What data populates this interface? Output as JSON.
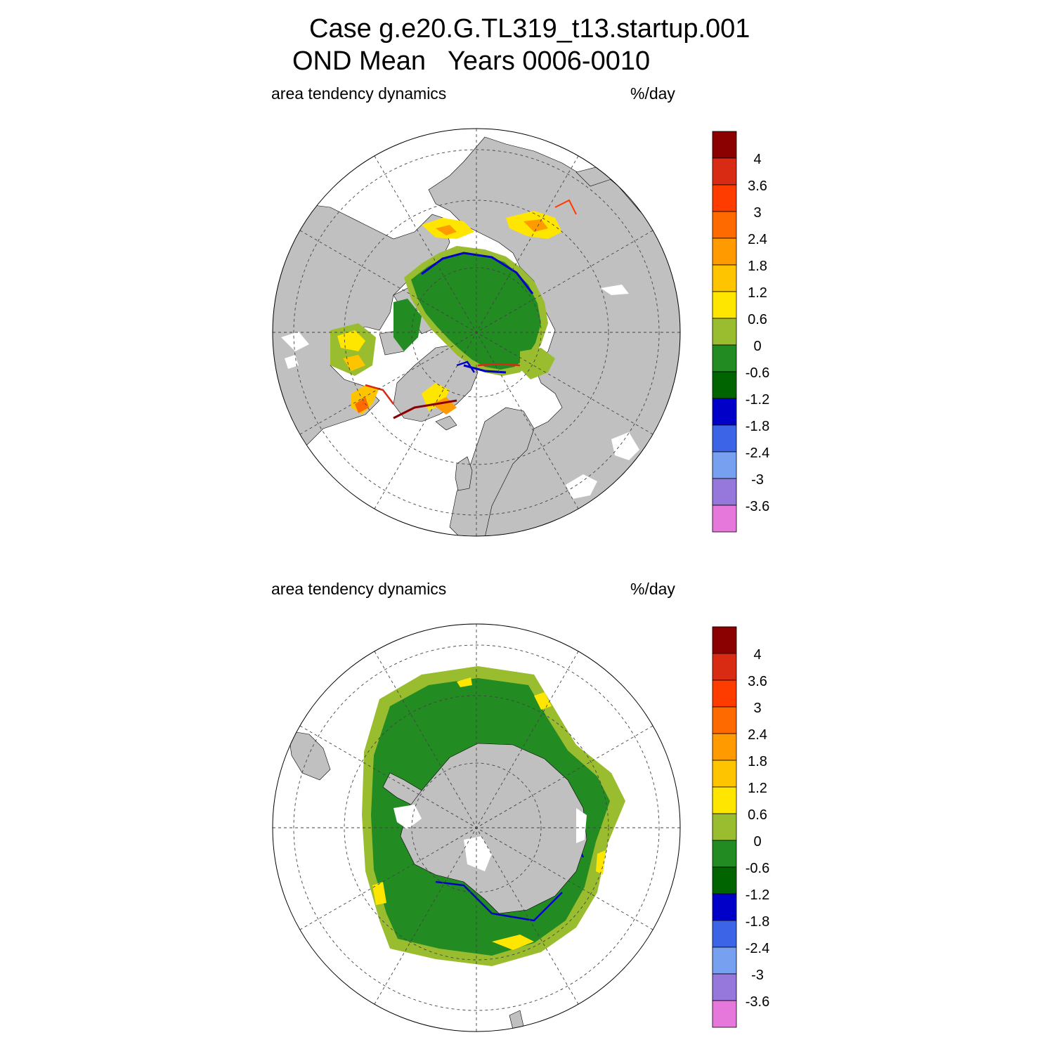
{
  "title": {
    "line1": "Case g.e20.G.TL319_t13.startup.001",
    "line2": "OND Mean   Years 0006-0010"
  },
  "panels": [
    {
      "id": "north",
      "left_label": "area tendency dynamics",
      "right_label": "%/day",
      "hemisphere": "Arctic"
    },
    {
      "id": "south",
      "left_label": "area tendency dynamics",
      "right_label": "%/day",
      "hemisphere": "Antarctic"
    }
  ],
  "colorbar": {
    "labels": [
      "4",
      "3.6",
      "3",
      "2.4",
      "1.8",
      "1.2",
      "0.6",
      "0",
      "-0.6",
      "-1.2",
      "-1.8",
      "-2.4",
      "-3",
      "-3.6"
    ],
    "colors": [
      "#8b0000",
      "#d92a14",
      "#ff3c00",
      "#ff6a00",
      "#ff9a00",
      "#ffc400",
      "#ffe600",
      "#9abd2f",
      "#228b22",
      "#006400",
      "#0000c8",
      "#3c64e6",
      "#78a0f0",
      "#9678dc",
      "#e678dc"
    ]
  },
  "map_colors": {
    "land": "#c0c0c0",
    "ocean": "#ffffff",
    "ice_main": "#228b22",
    "ice_edge": "#9abd2f"
  }
}
